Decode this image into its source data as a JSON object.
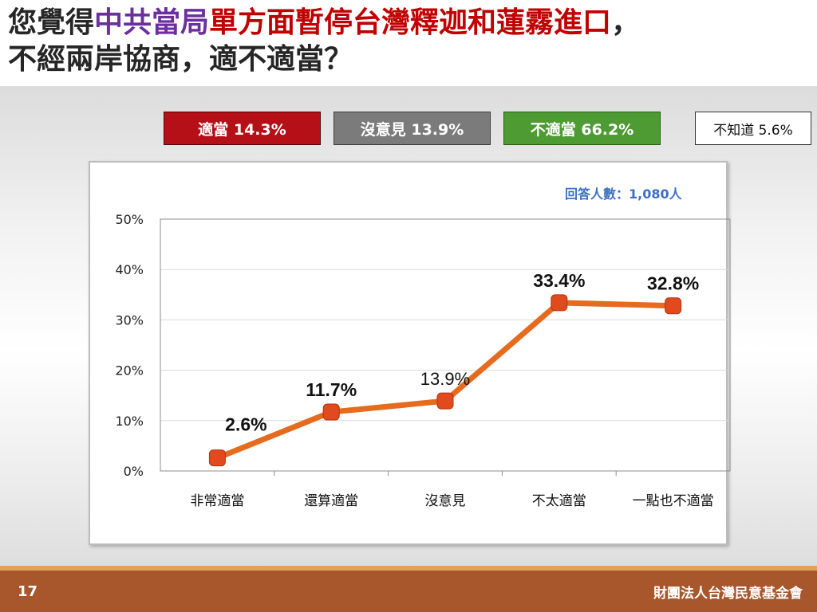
{
  "title": {
    "part1": "您覺得",
    "part2": "中共當局",
    "part3": "單方面暫停台灣釋迦和蓮霧進口",
    "part4": "，",
    "line2": "不經兩岸協商，適不適當？"
  },
  "legend": {
    "appropriate": "適當 14.3%",
    "no_opinion": "沒意見 13.9%",
    "inappropriate": "不適當 66.2%",
    "dont_know": "不知道 5.6%"
  },
  "respondents": "回答人數：1,080人",
  "footer": {
    "page_number": "17",
    "organization": "財團法人台灣民意基金會"
  },
  "colors": {
    "line": "#e56b1f",
    "marker": "#e04a1c",
    "appropriate": "#b50f17",
    "no_opinion": "#7b7b7b",
    "inappropriate": "#4e9a33"
  },
  "chart_data": {
    "type": "line",
    "categories": [
      "非常適當",
      "還算適當",
      "沒意見",
      "不太適當",
      "一點也不適當"
    ],
    "values": [
      2.6,
      11.7,
      13.9,
      33.4,
      32.8
    ],
    "labels": [
      "2.6%",
      "11.7%",
      "13.9%",
      "33.4%",
      "32.8%"
    ],
    "ylim": [
      0,
      50
    ],
    "yticks": [
      0,
      10,
      20,
      30,
      40,
      50
    ],
    "ytick_labels": [
      "0%",
      "10%",
      "20%",
      "30%",
      "40%",
      "50%"
    ],
    "grid": true
  }
}
